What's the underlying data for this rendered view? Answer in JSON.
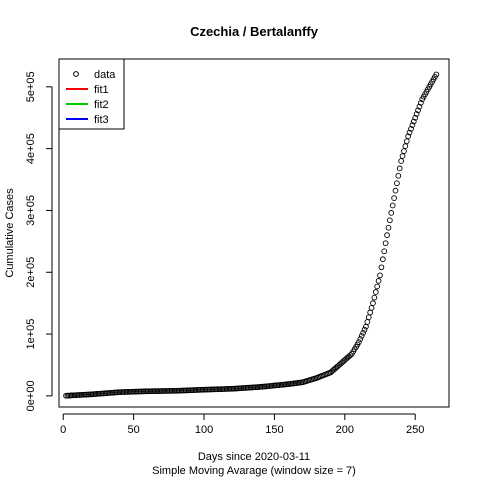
{
  "chart_data": {
    "type": "scatter",
    "title": "Czechia / Bertalanffy",
    "xlabel": "Days since 2020-03-11",
    "subtitle": "Simple Moving Avarage (window size = 7)",
    "ylabel": "Cumulative Cases",
    "xlim": [
      -3,
      274
    ],
    "ylim": [
      -18000,
      545000
    ],
    "x_ticks": [
      "0",
      "50",
      "100",
      "150",
      "200",
      "250"
    ],
    "x_tick_values": [
      0,
      50,
      100,
      150,
      200,
      250
    ],
    "y_ticks": [
      "0e+00",
      "1e+05",
      "2e+05",
      "3e+05",
      "4e+05",
      "5e+05"
    ],
    "y_tick_values": [
      0,
      100000,
      200000,
      300000,
      400000,
      500000
    ],
    "grid": false,
    "legend_position": "top-left",
    "legend": [
      {
        "label": "data",
        "kind": "point",
        "color": "#000000"
      },
      {
        "label": "fit1",
        "kind": "line",
        "color": "#ff0000"
      },
      {
        "label": "fit2",
        "kind": "line",
        "color": "#00cd00"
      },
      {
        "label": "fit3",
        "kind": "line",
        "color": "#0000ff"
      }
    ],
    "anchors": [
      [
        0,
        0
      ],
      [
        20,
        2500
      ],
      [
        40,
        6000
      ],
      [
        60,
        7500
      ],
      [
        80,
        8200
      ],
      [
        100,
        10000
      ],
      [
        120,
        11500
      ],
      [
        140,
        14500
      ],
      [
        160,
        19000
      ],
      [
        170,
        22000
      ],
      [
        180,
        29000
      ],
      [
        190,
        38000
      ],
      [
        195,
        48000
      ],
      [
        200,
        58000
      ],
      [
        205,
        68000
      ],
      [
        210,
        87000
      ],
      [
        215,
        112000
      ],
      [
        220,
        150000
      ],
      [
        225,
        195000
      ],
      [
        230,
        260000
      ],
      [
        235,
        320000
      ],
      [
        240,
        380000
      ],
      [
        245,
        420000
      ],
      [
        250,
        450000
      ],
      [
        255,
        480000
      ],
      [
        260,
        500000
      ],
      [
        265,
        520000
      ]
    ],
    "x_range": [
      2,
      265
    ]
  }
}
